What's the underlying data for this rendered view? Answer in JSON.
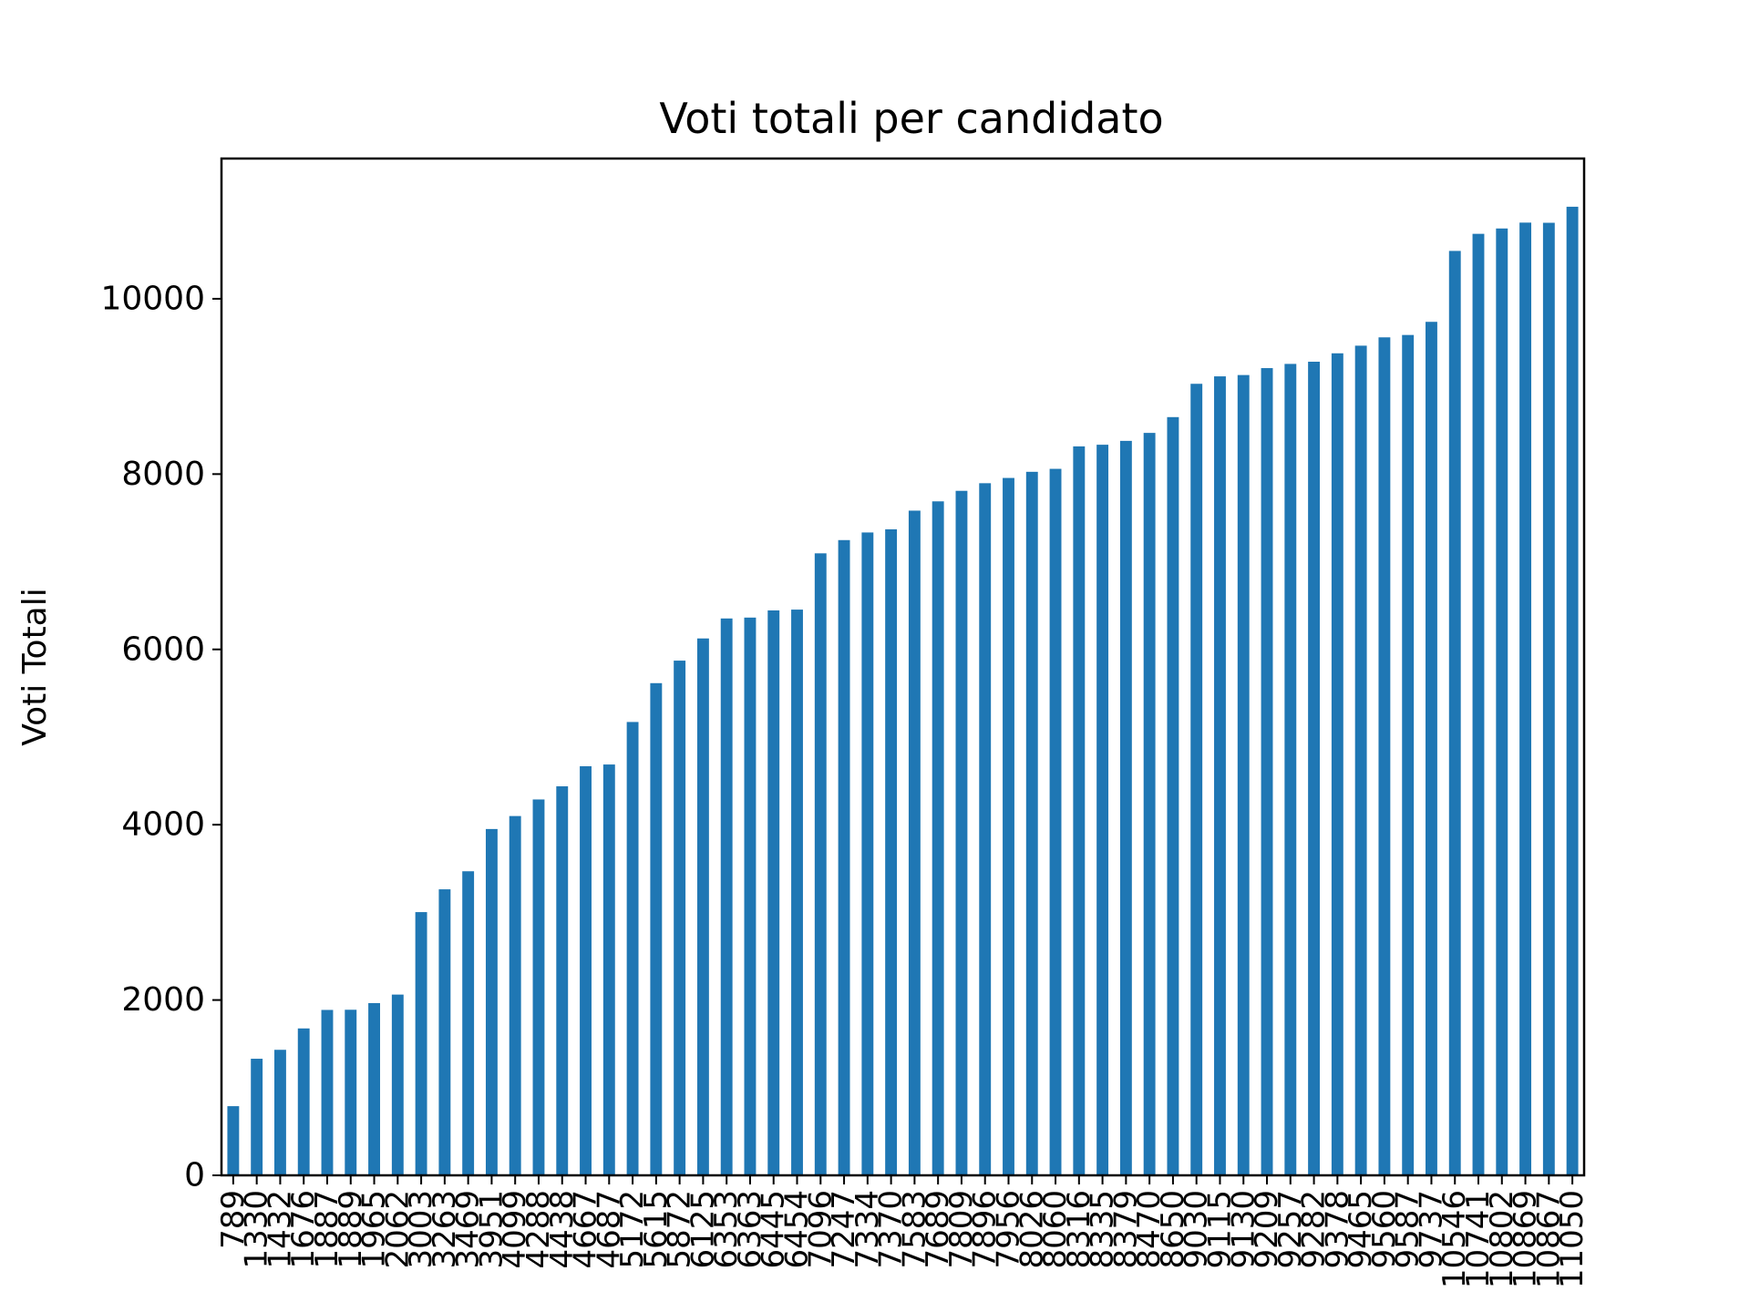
{
  "chart_data": {
    "type": "bar",
    "title": "Voti totali per candidato",
    "xlabel": "",
    "ylabel": "Voti Totali",
    "ylim": [
      0,
      11600
    ],
    "yticks": [
      0,
      2000,
      4000,
      6000,
      8000,
      10000
    ],
    "grid": false,
    "bar_color": "#1f77b4",
    "categories": [
      "789",
      "1330",
      "1432",
      "1676",
      "1887",
      "1889",
      "1965",
      "2062",
      "3003",
      "3263",
      "3469",
      "3951",
      "4099",
      "4288",
      "4438",
      "4667",
      "4687",
      "5172",
      "5615",
      "5872",
      "6125",
      "6353",
      "6363",
      "6445",
      "6454",
      "7096",
      "7247",
      "7334",
      "7370",
      "7583",
      "7689",
      "7809",
      "7896",
      "7956",
      "8026",
      "8060",
      "8316",
      "8335",
      "8379",
      "8470",
      "8650",
      "9030",
      "9115",
      "9130",
      "9209",
      "9257",
      "9282",
      "9378",
      "9465",
      "9560",
      "9587",
      "9737",
      "10546",
      "10741",
      "10802",
      "10869",
      "10867",
      "11050"
    ],
    "values": [
      789,
      1330,
      1432,
      1676,
      1887,
      1889,
      1965,
      2062,
      3003,
      3263,
      3469,
      3951,
      4099,
      4288,
      4438,
      4667,
      4687,
      5172,
      5615,
      5872,
      6125,
      6353,
      6363,
      6445,
      6454,
      7096,
      7247,
      7334,
      7370,
      7583,
      7689,
      7809,
      7896,
      7956,
      8026,
      8060,
      8316,
      8335,
      8379,
      8470,
      8650,
      9030,
      9115,
      9130,
      9209,
      9257,
      9282,
      9378,
      9465,
      9560,
      9587,
      9737,
      10546,
      10741,
      10802,
      10869,
      10867,
      11050
    ]
  }
}
